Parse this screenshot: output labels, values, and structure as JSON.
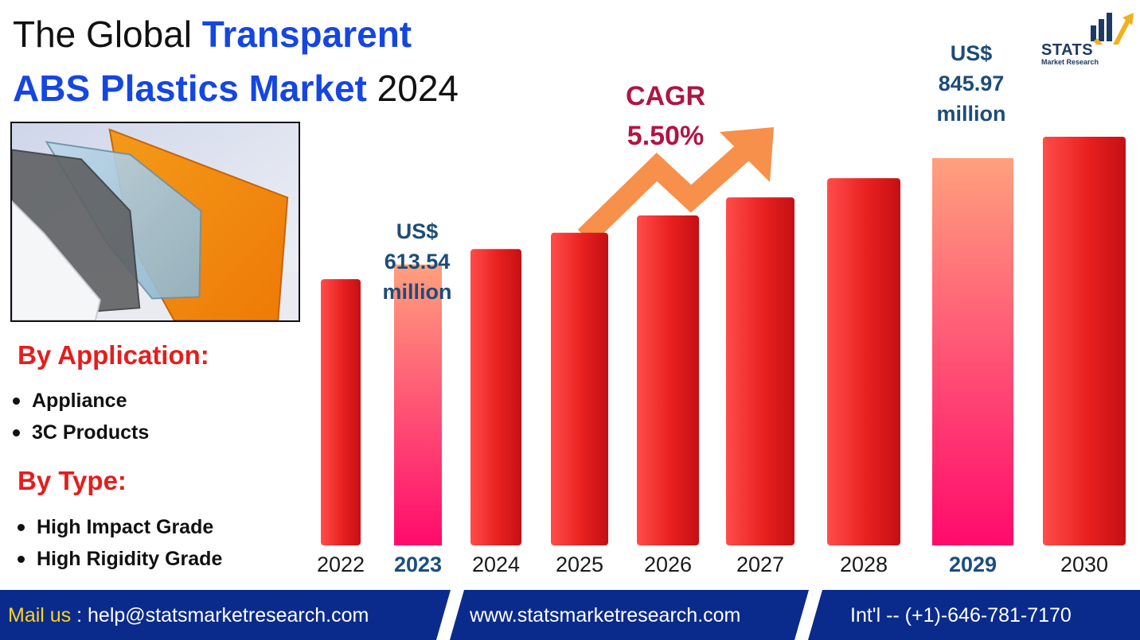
{
  "title": {
    "line1_plain": "The Global ",
    "line1_highlight": "Transparent",
    "line2_highlight": "ABS Plastics Market",
    "line2_plain": " 2024"
  },
  "segments": {
    "application": {
      "heading": "By Application:",
      "items": [
        "Appliance",
        "3C Products"
      ]
    },
    "type": {
      "heading": "By Type:",
      "items": [
        "High Impact Grade",
        "High Rigidity Grade"
      ]
    }
  },
  "callouts": {
    "start": {
      "line1": "US$",
      "line2": "613.54",
      "line3": "million"
    },
    "end": {
      "line1": "US$",
      "line2": "845.97",
      "line3": "million"
    },
    "cagr": {
      "label": "CAGR",
      "value": "5.50%"
    }
  },
  "chart_data": {
    "type": "bar",
    "categories": [
      "2022",
      "2023",
      "2024",
      "2025",
      "2026",
      "2027",
      "2028",
      "2029",
      "2030"
    ],
    "values": [
      581.5,
      613.54,
      647.3,
      682.9,
      720.5,
      760.1,
      801.9,
      845.97,
      892.5
    ],
    "highlighted": [
      "2023",
      "2029"
    ],
    "ylim": [
      0,
      900
    ],
    "grid": false,
    "legend": "none",
    "xlabel": "",
    "ylabel": "",
    "colors": {
      "bar": "#e8201f",
      "highlight_top": "#ffa07e",
      "highlight_bottom": "#ff0a6c",
      "arrow": "#f7904a"
    }
  },
  "logo": {
    "name": "STATS",
    "tagline": "Market Research"
  },
  "footer": {
    "mail_label": "Mail us",
    "mail_sep": " : ",
    "email": "help@statsmarketresearch.com",
    "website": "www.statsmarketresearch.com",
    "phone": "Int'l -- (+1)-646-781-7170",
    "colors": {
      "band": "#0a2b8c",
      "accent": "#ffd21f"
    }
  }
}
